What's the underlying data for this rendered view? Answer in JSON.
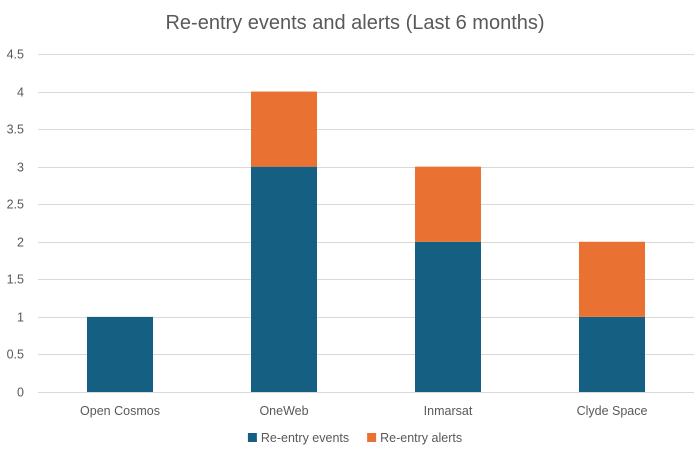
{
  "chart_data": {
    "type": "bar",
    "stacked": true,
    "title": "Re-entry events and alerts (Last 6 months)",
    "xlabel": "",
    "ylabel": "",
    "categories": [
      "Open Cosmos",
      "OneWeb",
      "Inmarsat",
      "Clyde Space"
    ],
    "series": [
      {
        "name": "Re-entry events",
        "values": [
          1,
          3,
          2,
          1
        ],
        "color": "#156082"
      },
      {
        "name": "Re-entry alerts",
        "values": [
          0,
          1,
          1,
          1
        ],
        "color": "#E97132"
      }
    ],
    "ylim": [
      0,
      4.5
    ],
    "yticks": [
      "0",
      "0.5",
      "1",
      "1.5",
      "2",
      "2.5",
      "3",
      "3.5",
      "4",
      "4.5"
    ],
    "grid": true,
    "gridline_color": "#D9D9D9",
    "legend_position": "bottom"
  }
}
